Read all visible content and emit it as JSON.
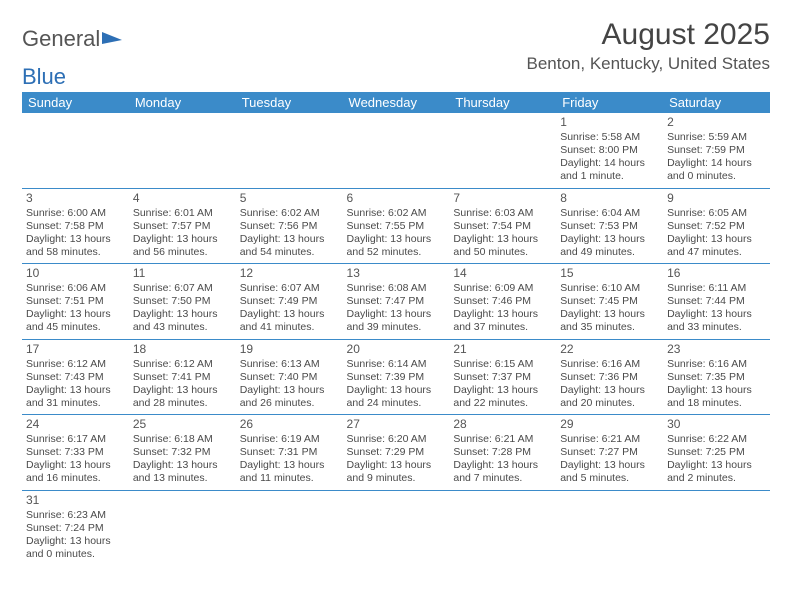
{
  "logo": {
    "text1": "General",
    "text2": "Blue"
  },
  "header": {
    "title": "August 2025",
    "location": "Benton, Kentucky, United States"
  },
  "colors": {
    "header_bg": "#3b8bc9",
    "header_fg": "#ffffff",
    "cell_border": "#3b8bc9",
    "text": "#4a4a4a"
  },
  "weekdays": [
    "Sunday",
    "Monday",
    "Tuesday",
    "Wednesday",
    "Thursday",
    "Friday",
    "Saturday"
  ],
  "weeks": [
    [
      null,
      null,
      null,
      null,
      null,
      {
        "n": "1",
        "sr": "5:58 AM",
        "ss": "8:00 PM",
        "dl": "14 hours and 1 minute."
      },
      {
        "n": "2",
        "sr": "5:59 AM",
        "ss": "7:59 PM",
        "dl": "14 hours and 0 minutes."
      }
    ],
    [
      {
        "n": "3",
        "sr": "6:00 AM",
        "ss": "7:58 PM",
        "dl": "13 hours and 58 minutes."
      },
      {
        "n": "4",
        "sr": "6:01 AM",
        "ss": "7:57 PM",
        "dl": "13 hours and 56 minutes."
      },
      {
        "n": "5",
        "sr": "6:02 AM",
        "ss": "7:56 PM",
        "dl": "13 hours and 54 minutes."
      },
      {
        "n": "6",
        "sr": "6:02 AM",
        "ss": "7:55 PM",
        "dl": "13 hours and 52 minutes."
      },
      {
        "n": "7",
        "sr": "6:03 AM",
        "ss": "7:54 PM",
        "dl": "13 hours and 50 minutes."
      },
      {
        "n": "8",
        "sr": "6:04 AM",
        "ss": "7:53 PM",
        "dl": "13 hours and 49 minutes."
      },
      {
        "n": "9",
        "sr": "6:05 AM",
        "ss": "7:52 PM",
        "dl": "13 hours and 47 minutes."
      }
    ],
    [
      {
        "n": "10",
        "sr": "6:06 AM",
        "ss": "7:51 PM",
        "dl": "13 hours and 45 minutes."
      },
      {
        "n": "11",
        "sr": "6:07 AM",
        "ss": "7:50 PM",
        "dl": "13 hours and 43 minutes."
      },
      {
        "n": "12",
        "sr": "6:07 AM",
        "ss": "7:49 PM",
        "dl": "13 hours and 41 minutes."
      },
      {
        "n": "13",
        "sr": "6:08 AM",
        "ss": "7:47 PM",
        "dl": "13 hours and 39 minutes."
      },
      {
        "n": "14",
        "sr": "6:09 AM",
        "ss": "7:46 PM",
        "dl": "13 hours and 37 minutes."
      },
      {
        "n": "15",
        "sr": "6:10 AM",
        "ss": "7:45 PM",
        "dl": "13 hours and 35 minutes."
      },
      {
        "n": "16",
        "sr": "6:11 AM",
        "ss": "7:44 PM",
        "dl": "13 hours and 33 minutes."
      }
    ],
    [
      {
        "n": "17",
        "sr": "6:12 AM",
        "ss": "7:43 PM",
        "dl": "13 hours and 31 minutes."
      },
      {
        "n": "18",
        "sr": "6:12 AM",
        "ss": "7:41 PM",
        "dl": "13 hours and 28 minutes."
      },
      {
        "n": "19",
        "sr": "6:13 AM",
        "ss": "7:40 PM",
        "dl": "13 hours and 26 minutes."
      },
      {
        "n": "20",
        "sr": "6:14 AM",
        "ss": "7:39 PM",
        "dl": "13 hours and 24 minutes."
      },
      {
        "n": "21",
        "sr": "6:15 AM",
        "ss": "7:37 PM",
        "dl": "13 hours and 22 minutes."
      },
      {
        "n": "22",
        "sr": "6:16 AM",
        "ss": "7:36 PM",
        "dl": "13 hours and 20 minutes."
      },
      {
        "n": "23",
        "sr": "6:16 AM",
        "ss": "7:35 PM",
        "dl": "13 hours and 18 minutes."
      }
    ],
    [
      {
        "n": "24",
        "sr": "6:17 AM",
        "ss": "7:33 PM",
        "dl": "13 hours and 16 minutes."
      },
      {
        "n": "25",
        "sr": "6:18 AM",
        "ss": "7:32 PM",
        "dl": "13 hours and 13 minutes."
      },
      {
        "n": "26",
        "sr": "6:19 AM",
        "ss": "7:31 PM",
        "dl": "13 hours and 11 minutes."
      },
      {
        "n": "27",
        "sr": "6:20 AM",
        "ss": "7:29 PM",
        "dl": "13 hours and 9 minutes."
      },
      {
        "n": "28",
        "sr": "6:21 AM",
        "ss": "7:28 PM",
        "dl": "13 hours and 7 minutes."
      },
      {
        "n": "29",
        "sr": "6:21 AM",
        "ss": "7:27 PM",
        "dl": "13 hours and 5 minutes."
      },
      {
        "n": "30",
        "sr": "6:22 AM",
        "ss": "7:25 PM",
        "dl": "13 hours and 2 minutes."
      }
    ],
    [
      {
        "n": "31",
        "sr": "6:23 AM",
        "ss": "7:24 PM",
        "dl": "13 hours and 0 minutes."
      },
      null,
      null,
      null,
      null,
      null,
      null
    ]
  ],
  "labels": {
    "sunrise": "Sunrise: ",
    "sunset": "Sunset: ",
    "daylight": "Daylight: "
  }
}
